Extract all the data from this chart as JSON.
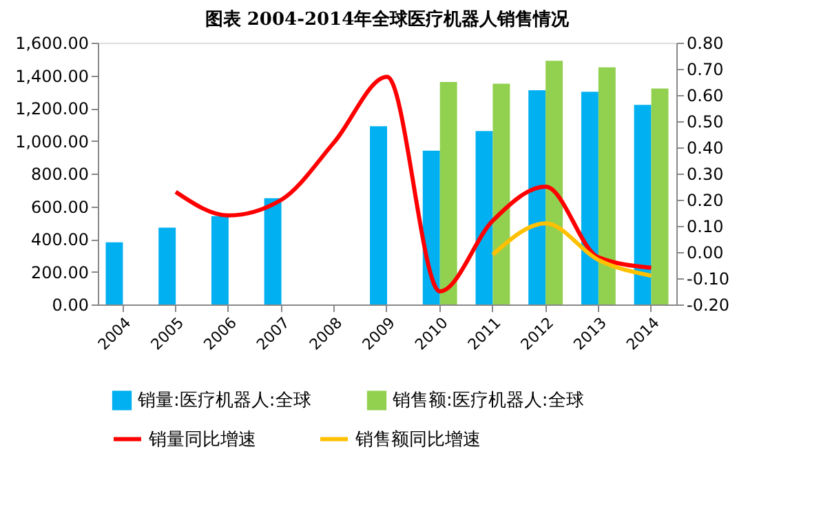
{
  "chart_data": {
    "type": "bar",
    "title": "图表    2004-2014年全球医疗机器人销售情况",
    "categories": [
      "2004",
      "2005",
      "2006",
      "2007",
      "2008",
      "2009",
      "2010",
      "2011",
      "2012",
      "2013",
      "2014"
    ],
    "series": [
      {
        "name": "销量:医疗机器人:全球",
        "color": "#00b0f0",
        "values": [
          380,
          470,
          540,
          650,
          null,
          1090,
          940,
          1060,
          1310,
          1300,
          1220
        ]
      },
      {
        "name": "销售额:医疗机器人:全球",
        "color": "#92d050",
        "values": [
          null,
          null,
          null,
          null,
          null,
          null,
          1360,
          1350,
          1490,
          1450,
          1320
        ]
      },
      {
        "name": "销量同比增速",
        "type": "line",
        "axis": "y2",
        "color": "#ff0000",
        "values": [
          null,
          0.23,
          0.14,
          0.2,
          0.42,
          0.67,
          -0.15,
          0.12,
          0.25,
          -0.02,
          -0.06
        ]
      },
      {
        "name": "销售额同比增速",
        "type": "line",
        "axis": "y2",
        "color": "#ffc000",
        "values": [
          null,
          null,
          null,
          null,
          null,
          null,
          null,
          -0.01,
          0.11,
          -0.03,
          -0.09
        ]
      }
    ],
    "ylim": [
      0,
      1600
    ],
    "yticks": [
      {
        "value": 0,
        "label": "0.00"
      },
      {
        "value": 200,
        "label": "200.00"
      },
      {
        "value": 400,
        "label": "400.00"
      },
      {
        "value": 600,
        "label": "600.00"
      },
      {
        "value": 800,
        "label": "800.00"
      },
      {
        "value": 1000,
        "label": "1,000.00"
      },
      {
        "value": 1200,
        "label": "1,200.00"
      },
      {
        "value": 1400,
        "label": "1,400.00"
      },
      {
        "value": 1600,
        "label": "1,600.00"
      }
    ],
    "y2lim": [
      -0.2,
      0.8
    ],
    "y2ticks": [
      {
        "value": -0.2,
        "label": "-0.20"
      },
      {
        "value": -0.1,
        "label": "-0.10"
      },
      {
        "value": 0,
        "label": "0.00"
      },
      {
        "value": 0.1,
        "label": "0.10"
      },
      {
        "value": 0.2,
        "label": "0.20"
      },
      {
        "value": 0.3,
        "label": "0.30"
      },
      {
        "value": 0.4,
        "label": "0.40"
      },
      {
        "value": 0.5,
        "label": "0.50"
      },
      {
        "value": 0.6,
        "label": "0.60"
      },
      {
        "value": 0.7,
        "label": "0.70"
      },
      {
        "value": 0.8,
        "label": "0.80"
      }
    ],
    "grid": false,
    "legend": "bottom",
    "marker": "none",
    "line_style": "solid"
  }
}
